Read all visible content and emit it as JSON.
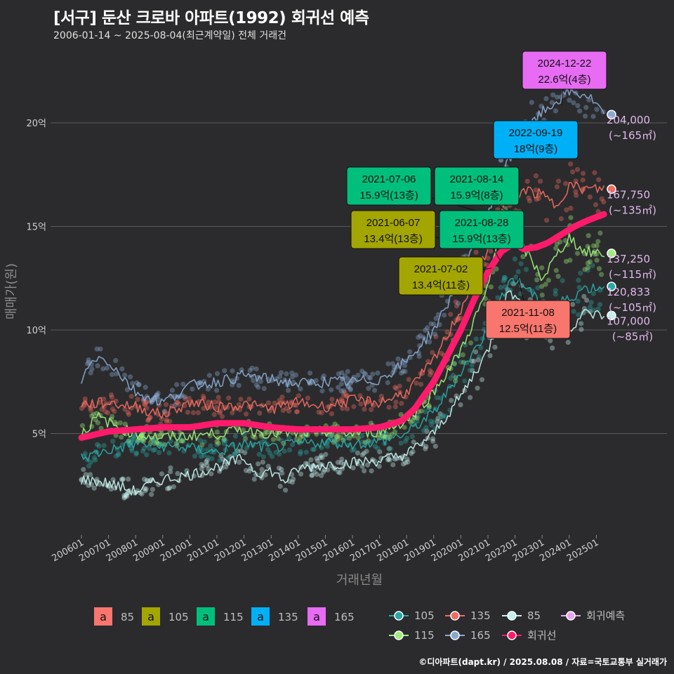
{
  "title": "[서구] 둔산 크로바 아파트(1992) 회귀선 예측",
  "subtitle": "2006-01-14 ~ 2025-08-04(최근계약일) 전체 거래건",
  "credit": "©디아파트(dapt.kr) / 2025.08.08 / 자료=국토교통부 실거래가",
  "chart_data": {
    "type": "scatter",
    "xlabel": "거래년월",
    "ylabel": "매매가(원)",
    "x_range": [
      "2006-01",
      "2025-08"
    ],
    "ylim_eok": [
      0,
      24
    ],
    "y_ticks": [
      {
        "value": 5,
        "label": "5억"
      },
      {
        "value": 10,
        "label": "10억"
      },
      {
        "value": 15,
        "label": "15억"
      },
      {
        "value": 20,
        "label": "20억"
      }
    ],
    "x_ticks": [
      "200601",
      "200701",
      "200801",
      "200901",
      "201001",
      "201101",
      "201201",
      "201301",
      "201401",
      "201501",
      "201601",
      "201701",
      "201801",
      "201901",
      "202001",
      "202101",
      "202201",
      "202301",
      "202401",
      "202501"
    ],
    "grid": true,
    "series": [
      {
        "name": "85",
        "color": "#c4f0ec",
        "points": [
          [
            2006.0,
            2.8
          ],
          [
            2007.0,
            2.6
          ],
          [
            2008.0,
            2.2
          ],
          [
            2009.0,
            2.8
          ],
          [
            2010.0,
            3.0
          ],
          [
            2011.0,
            3.4
          ],
          [
            2012.0,
            3.8
          ],
          [
            2012.5,
            3.1
          ],
          [
            2013.0,
            3.2
          ],
          [
            2013.5,
            2.7
          ],
          [
            2014.0,
            3.3
          ],
          [
            2015.0,
            3.5
          ],
          [
            2016.0,
            3.6
          ],
          [
            2017.0,
            3.7
          ],
          [
            2018.0,
            4.0
          ],
          [
            2019.0,
            5.0
          ],
          [
            2020.0,
            6.8
          ],
          [
            2021.0,
            9.0
          ],
          [
            2021.8,
            12.0
          ],
          [
            2022.5,
            10.5
          ],
          [
            2023.0,
            10.0
          ],
          [
            2024.0,
            10.0
          ],
          [
            2024.5,
            10.8
          ],
          [
            2025.3,
            10.7
          ]
        ],
        "end_label": "107,000",
        "end_area": "(~85㎡)"
      },
      {
        "name": "105",
        "color": "#2aa7a3",
        "points": [
          [
            2006.0,
            3.8
          ],
          [
            2007.0,
            4.2
          ],
          [
            2008.0,
            4.5
          ],
          [
            2009.0,
            4.4
          ],
          [
            2010.0,
            4.3
          ],
          [
            2011.0,
            4.1
          ],
          [
            2012.0,
            4.5
          ],
          [
            2013.0,
            4.3
          ],
          [
            2014.0,
            4.5
          ],
          [
            2015.0,
            4.6
          ],
          [
            2016.0,
            4.5
          ],
          [
            2017.0,
            4.6
          ],
          [
            2018.0,
            5.0
          ],
          [
            2019.0,
            6.0
          ],
          [
            2020.0,
            8.0
          ],
          [
            2021.0,
            10.0
          ],
          [
            2021.8,
            12.5
          ],
          [
            2022.5,
            12.0
          ],
          [
            2023.0,
            11.0
          ],
          [
            2024.0,
            11.5
          ],
          [
            2024.5,
            12.0
          ],
          [
            2025.3,
            12.1
          ]
        ],
        "end_label": "120,833",
        "end_area": "(~105㎡)"
      },
      {
        "name": "115",
        "color": "#9fec7c",
        "points": [
          [
            2006.0,
            5.0
          ],
          [
            2006.6,
            5.8
          ],
          [
            2007.5,
            5.2
          ],
          [
            2008.0,
            5.0
          ],
          [
            2009.0,
            4.8
          ],
          [
            2010.0,
            4.9
          ],
          [
            2011.0,
            5.0
          ],
          [
            2012.0,
            5.2
          ],
          [
            2013.0,
            5.0
          ],
          [
            2014.0,
            5.0
          ],
          [
            2015.0,
            5.1
          ],
          [
            2016.0,
            5.0
          ],
          [
            2017.0,
            5.1
          ],
          [
            2018.0,
            5.6
          ],
          [
            2019.0,
            7.0
          ],
          [
            2020.0,
            9.0
          ],
          [
            2021.0,
            12.0
          ],
          [
            2021.6,
            15.9
          ],
          [
            2022.3,
            14.0
          ],
          [
            2023.0,
            12.5
          ],
          [
            2023.5,
            13.5
          ],
          [
            2024.0,
            14.5
          ],
          [
            2024.5,
            13.8
          ],
          [
            2025.3,
            13.7
          ]
        ],
        "end_label": "137,250",
        "end_area": "(~115㎡)"
      },
      {
        "name": "135",
        "color": "#f06b62",
        "points": [
          [
            2006.0,
            6.4
          ],
          [
            2007.0,
            6.5
          ],
          [
            2008.0,
            6.3
          ],
          [
            2009.0,
            5.9
          ],
          [
            2010.0,
            6.5
          ],
          [
            2011.0,
            6.3
          ],
          [
            2012.0,
            6.4
          ],
          [
            2013.0,
            6.2
          ],
          [
            2014.0,
            6.5
          ],
          [
            2015.0,
            6.3
          ],
          [
            2016.0,
            6.6
          ],
          [
            2017.0,
            6.5
          ],
          [
            2018.0,
            7.0
          ],
          [
            2019.0,
            8.5
          ],
          [
            2020.0,
            11.0
          ],
          [
            2021.0,
            14.0
          ],
          [
            2021.6,
            16.0
          ],
          [
            2022.3,
            16.8
          ],
          [
            2023.0,
            16.5
          ],
          [
            2023.5,
            16.0
          ],
          [
            2024.0,
            17.0
          ],
          [
            2024.5,
            16.8
          ],
          [
            2025.3,
            16.8
          ]
        ],
        "end_label": "167,750",
        "end_area": "(~135㎡)"
      },
      {
        "name": "165",
        "color": "#8aa8cf",
        "points": [
          [
            2006.0,
            7.6
          ],
          [
            2006.5,
            8.7
          ],
          [
            2007.0,
            8.5
          ],
          [
            2008.0,
            7.0
          ],
          [
            2009.0,
            6.5
          ],
          [
            2010.0,
            7.3
          ],
          [
            2011.0,
            7.5
          ],
          [
            2012.0,
            7.8
          ],
          [
            2013.0,
            7.6
          ],
          [
            2014.0,
            7.4
          ],
          [
            2015.0,
            7.5
          ],
          [
            2016.0,
            7.5
          ],
          [
            2017.0,
            7.6
          ],
          [
            2018.0,
            8.5
          ],
          [
            2019.0,
            10.0
          ],
          [
            2020.0,
            12.5
          ],
          [
            2021.0,
            15.5
          ],
          [
            2021.7,
            18.0
          ],
          [
            2022.3,
            19.5
          ],
          [
            2023.0,
            20.5
          ],
          [
            2023.5,
            21.0
          ],
          [
            2024.0,
            21.5
          ],
          [
            2024.7,
            21.3
          ],
          [
            2025.3,
            20.4
          ]
        ],
        "end_label": "204,000",
        "end_area": "(~165㎡)"
      },
      {
        "name": "회귀선",
        "color": "#ff1a6b",
        "points": [
          [
            2006.0,
            4.8
          ],
          [
            2007.0,
            5.1
          ],
          [
            2008.0,
            5.2
          ],
          [
            2009.0,
            5.3
          ],
          [
            2010.0,
            5.3
          ],
          [
            2011.0,
            5.5
          ],
          [
            2012.0,
            5.5
          ],
          [
            2013.0,
            5.3
          ],
          [
            2014.0,
            5.2
          ],
          [
            2015.0,
            5.2
          ],
          [
            2016.0,
            5.2
          ],
          [
            2017.0,
            5.3
          ],
          [
            2017.8,
            5.6
          ],
          [
            2018.3,
            6.2
          ],
          [
            2019.0,
            7.5
          ],
          [
            2019.6,
            9.0
          ],
          [
            2020.0,
            10.0
          ],
          [
            2020.5,
            11.5
          ],
          [
            2021.0,
            12.8
          ],
          [
            2021.5,
            13.8
          ],
          [
            2022.0,
            14.2
          ],
          [
            2022.3,
            13.9
          ],
          [
            2022.8,
            14.0
          ],
          [
            2023.2,
            14.2
          ],
          [
            2023.7,
            14.6
          ],
          [
            2024.2,
            15.0
          ],
          [
            2024.7,
            15.3
          ],
          [
            2025.3,
            15.6
          ]
        ]
      },
      {
        "name": "회귀예측",
        "color": "#e7a4ef",
        "points": []
      }
    ],
    "annotations": [
      {
        "date": "2024-12-22",
        "price": "22.6억(4층)",
        "group": "165"
      },
      {
        "date": "2022-09-19",
        "price": "18억(9층)",
        "group": "135"
      },
      {
        "date": "2021-07-06",
        "price": "15.9억(13층)",
        "group": "115"
      },
      {
        "date": "2021-08-14",
        "price": "15.9억(8층)",
        "group": "115"
      },
      {
        "date": "2021-06-07",
        "price": "13.4억(13층)",
        "group": "105"
      },
      {
        "date": "2021-08-28",
        "price": "15.9억(13층)",
        "group": "115"
      },
      {
        "date": "2021-07-02",
        "price": "13.4억(11층)",
        "group": "105"
      },
      {
        "date": "2021-11-08",
        "price": "12.5억(11층)",
        "group": "85"
      }
    ],
    "label_legend": {
      "items": [
        {
          "glyph": "a",
          "name": "85",
          "color": "#f8766d"
        },
        {
          "glyph": "a",
          "name": "105",
          "color": "#a3a500"
        },
        {
          "glyph": "a",
          "name": "115",
          "color": "#00bf7d"
        },
        {
          "glyph": "a",
          "name": "135",
          "color": "#00b0f6"
        },
        {
          "glyph": "a",
          "name": "165",
          "color": "#e76bf3"
        }
      ]
    },
    "line_legend": {
      "items": [
        {
          "name": "105",
          "color": "#2aa7a3"
        },
        {
          "name": "135",
          "color": "#f06b62"
        },
        {
          "name": "85",
          "color": "#c4f0ec"
        },
        {
          "name": "회귀예측",
          "color": "#e7a4ef"
        },
        {
          "name": "115",
          "color": "#9fec7c"
        },
        {
          "name": "165",
          "color": "#8aa8cf"
        },
        {
          "name": "회귀선",
          "color": "#ff1a6b"
        }
      ]
    }
  }
}
